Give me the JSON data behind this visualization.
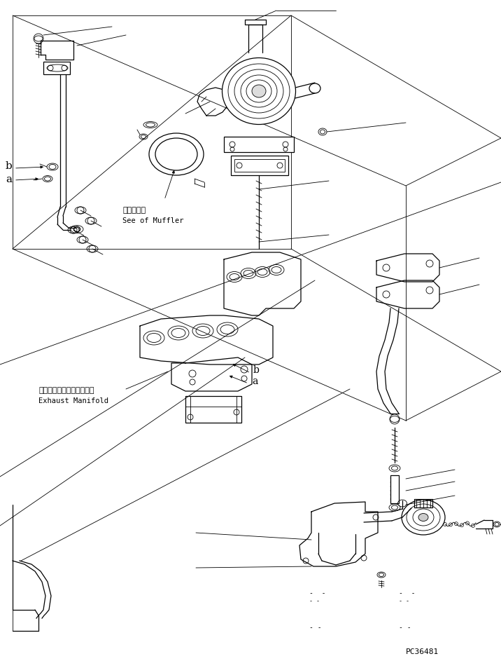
{
  "bg_color": "#ffffff",
  "line_color": "#000000",
  "part_code": "PC36481",
  "annotation_muffler_jp": "マフラ参照",
  "annotation_muffler_en": "See of Muffler",
  "annotation_exhaust_jp": "エキゾーストマニホールド",
  "annotation_exhaust_en": "Exhaust Manifold",
  "label_a": "a",
  "label_b": "b",
  "figsize": [
    7.16,
    9.43
  ],
  "dpi": 100,
  "lw_thin": 0.6,
  "lw_med": 0.9,
  "lw_thick": 1.3
}
